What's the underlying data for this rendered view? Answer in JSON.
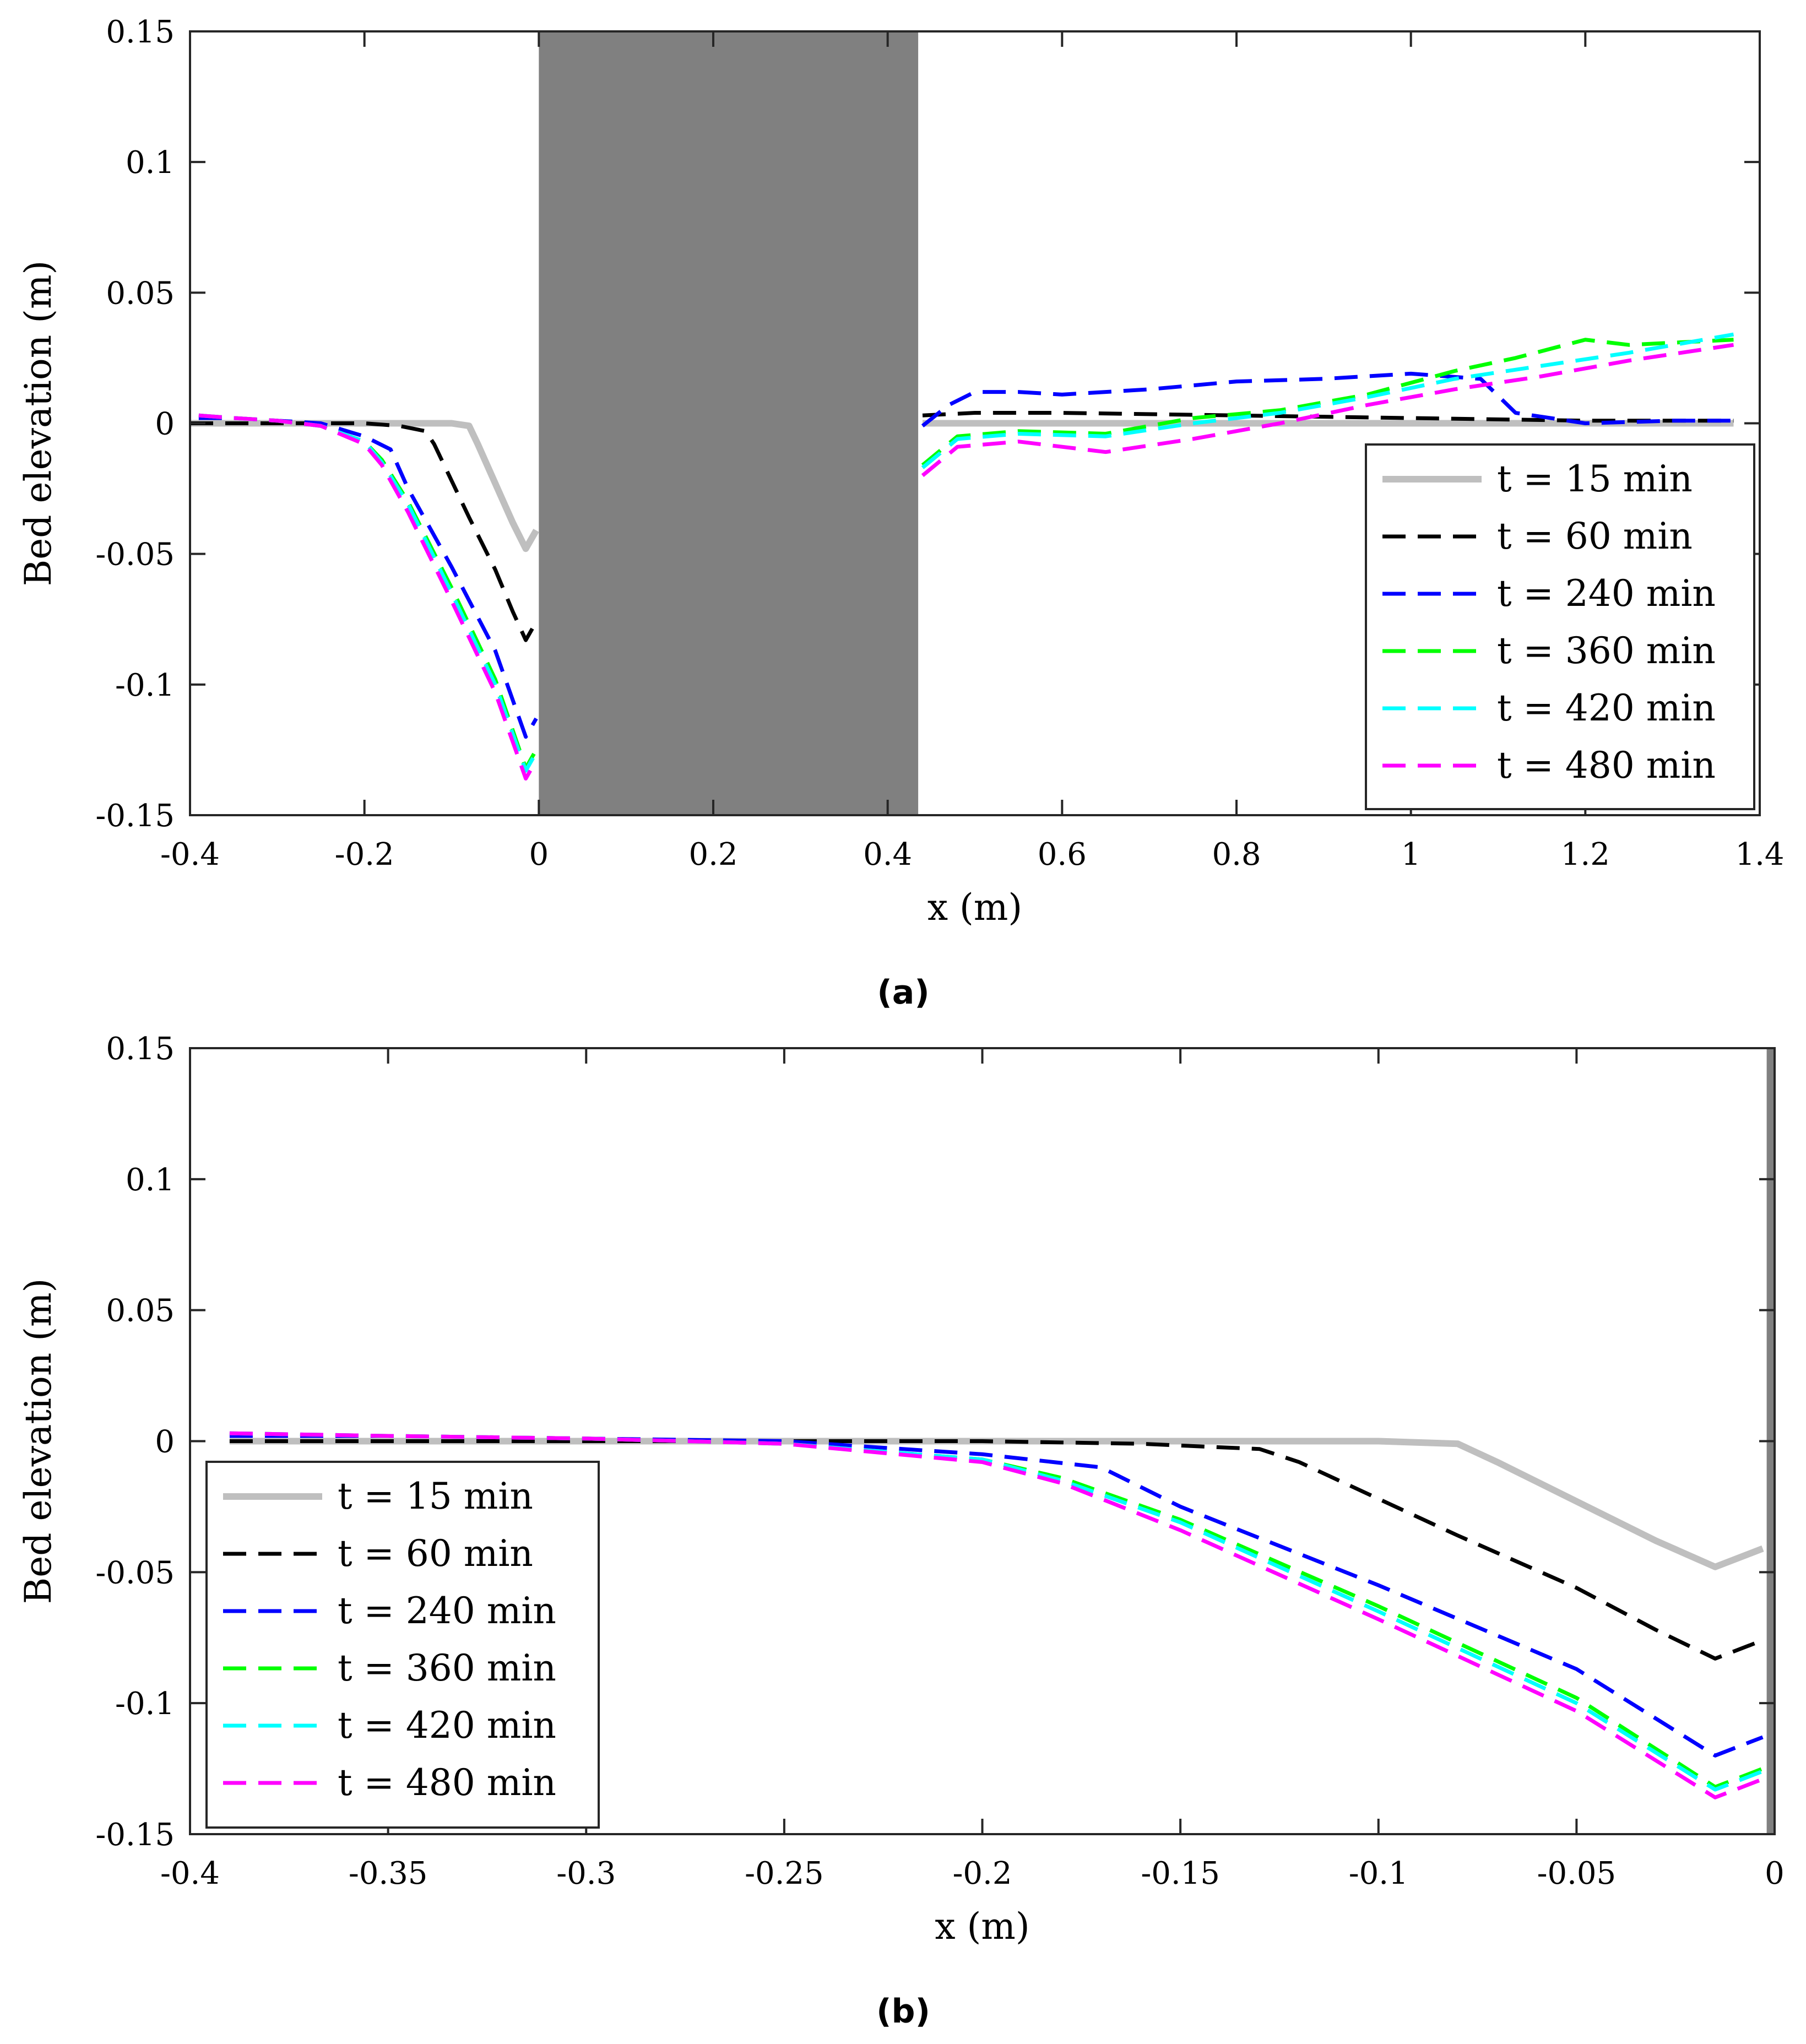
{
  "chart_data": [
    {
      "type": "line",
      "caption": "(a)",
      "xlabel": "x (m)",
      "ylabel": "Bed elevation (m)",
      "xlim": [
        -0.4,
        1.4
      ],
      "ylim": [
        -0.15,
        0.15
      ],
      "xticks": [
        "-0.4",
        "-0.2",
        "0",
        "0.2",
        "0.4",
        "0.6",
        "0.8",
        "1",
        "1.2",
        "1.4"
      ],
      "yticks": [
        "-0.15",
        "-0.1",
        "-0.05",
        "0",
        "0.05",
        "0.1",
        "0.15"
      ],
      "grid": false,
      "legend_position": "bottom-right",
      "obstacle": {
        "x_start": 0,
        "x_end": 0.435,
        "color": "#808080"
      },
      "series": [
        {
          "name": "t = 15 min",
          "color": "#bfbfbf",
          "style": "solid",
          "x": [
            -0.4,
            -0.3,
            -0.2,
            -0.15,
            -0.1,
            -0.08,
            -0.07,
            -0.05,
            -0.03,
            -0.015,
            -0.003
          ],
          "y": [
            0,
            0,
            0,
            0,
            0,
            -0.001,
            -0.008,
            -0.023,
            -0.038,
            -0.048,
            -0.041
          ],
          "x2": [
            0.44,
            0.6,
            0.8,
            1.0,
            1.2,
            1.37
          ],
          "y2": [
            0,
            0,
            0,
            0,
            0,
            0
          ]
        },
        {
          "name": "t = 60 min",
          "color": "#000000",
          "style": "dashed",
          "x": [
            -0.4,
            -0.3,
            -0.2,
            -0.16,
            -0.13,
            -0.12,
            -0.1,
            -0.08,
            -0.05,
            -0.03,
            -0.015,
            -0.003
          ],
          "y": [
            0,
            0,
            0,
            -0.001,
            -0.003,
            -0.008,
            -0.022,
            -0.036,
            -0.056,
            -0.072,
            -0.083,
            -0.076
          ],
          "x2": [
            0.44,
            0.5,
            0.6,
            0.8,
            1.0,
            1.2,
            1.37
          ],
          "y2": [
            0.003,
            0.004,
            0.004,
            0.003,
            0.002,
            0.001,
            0.001
          ]
        },
        {
          "name": "t = 240 min",
          "color": "#0000ff",
          "style": "dashed",
          "x": [
            -0.39,
            -0.35,
            -0.3,
            -0.25,
            -0.2,
            -0.17,
            -0.15,
            -0.1,
            -0.05,
            -0.015,
            -0.003
          ],
          "y": [
            0.002,
            0.002,
            0.001,
            0,
            -0.005,
            -0.01,
            -0.025,
            -0.055,
            -0.087,
            -0.12,
            -0.113
          ],
          "x2": [
            0.44,
            0.47,
            0.5,
            0.55,
            0.6,
            0.7,
            0.8,
            0.9,
            1.0,
            1.08,
            1.12,
            1.2,
            1.3,
            1.37
          ],
          "y2": [
            -0.001,
            0.007,
            0.012,
            0.012,
            0.011,
            0.013,
            0.016,
            0.017,
            0.019,
            0.017,
            0.004,
            0,
            0.001,
            0.001
          ]
        },
        {
          "name": "t = 360 min",
          "color": "#00ff00",
          "style": "dashed",
          "x": [
            -0.39,
            -0.35,
            -0.3,
            -0.25,
            -0.2,
            -0.18,
            -0.15,
            -0.1,
            -0.05,
            -0.015,
            -0.003
          ],
          "y": [
            0.003,
            0.002,
            0.001,
            -0.001,
            -0.007,
            -0.014,
            -0.03,
            -0.063,
            -0.098,
            -0.132,
            -0.125
          ],
          "x2": [
            0.44,
            0.48,
            0.55,
            0.65,
            0.75,
            0.85,
            0.95,
            1.05,
            1.12,
            1.2,
            1.25,
            1.37
          ],
          "y2": [
            -0.016,
            -0.005,
            -0.003,
            -0.004,
            0.002,
            0.005,
            0.011,
            0.02,
            0.025,
            0.032,
            0.03,
            0.032
          ]
        },
        {
          "name": "t = 420 min",
          "color": "#00ffff",
          "style": "dashed",
          "x": [
            -0.39,
            -0.35,
            -0.3,
            -0.25,
            -0.2,
            -0.18,
            -0.15,
            -0.1,
            -0.05,
            -0.015,
            -0.003
          ],
          "y": [
            0.003,
            0.002,
            0.001,
            -0.001,
            -0.007,
            -0.015,
            -0.031,
            -0.065,
            -0.1,
            -0.133,
            -0.126
          ],
          "x2": [
            0.44,
            0.48,
            0.55,
            0.65,
            0.75,
            0.85,
            0.95,
            1.05,
            1.15,
            1.25,
            1.37
          ],
          "y2": [
            -0.017,
            -0.006,
            -0.004,
            -0.005,
            0,
            0.004,
            0.01,
            0.017,
            0.022,
            0.027,
            0.034
          ]
        },
        {
          "name": "t = 480 min",
          "color": "#ff00ff",
          "style": "dashed",
          "x": [
            -0.39,
            -0.35,
            -0.3,
            -0.25,
            -0.2,
            -0.18,
            -0.15,
            -0.1,
            -0.05,
            -0.015,
            -0.003
          ],
          "y": [
            0.003,
            0.002,
            0.001,
            -0.001,
            -0.008,
            -0.016,
            -0.034,
            -0.068,
            -0.103,
            -0.136,
            -0.129
          ],
          "x2": [
            0.44,
            0.48,
            0.55,
            0.65,
            0.75,
            0.85,
            0.95,
            1.05,
            1.15,
            1.25,
            1.37
          ],
          "y2": [
            -0.02,
            -0.009,
            -0.007,
            -0.011,
            -0.006,
            0,
            0.007,
            0.013,
            0.018,
            0.024,
            0.03
          ]
        }
      ]
    },
    {
      "type": "line",
      "caption": "(b)",
      "xlabel": "x (m)",
      "ylabel": "Bed elevation (m)",
      "xlim": [
        -0.4,
        0
      ],
      "ylim": [
        -0.15,
        0.15
      ],
      "xticks": [
        "-0.4",
        "-0.35",
        "-0.3",
        "-0.25",
        "-0.2",
        "-0.15",
        "-0.1",
        "-0.05",
        "0"
      ],
      "yticks": [
        "-0.15",
        "-0.1",
        "-0.05",
        "0",
        "0.05",
        "0.1",
        "0.15"
      ],
      "grid": false,
      "legend_position": "bottom-left",
      "obstacle": {
        "x_start": -0.002,
        "x_end": 0,
        "color": "#808080"
      },
      "series": [
        {
          "name": "t = 15 min",
          "color": "#bfbfbf",
          "style": "solid",
          "x": [
            -0.39,
            -0.3,
            -0.2,
            -0.1,
            -0.08,
            -0.07,
            -0.05,
            -0.03,
            -0.015,
            -0.003
          ],
          "y": [
            0,
            0,
            0,
            0,
            -0.001,
            -0.008,
            -0.023,
            -0.038,
            -0.048,
            -0.041
          ]
        },
        {
          "name": "t = 60 min",
          "color": "#000000",
          "style": "dashed",
          "x": [
            -0.39,
            -0.3,
            -0.2,
            -0.16,
            -0.13,
            -0.12,
            -0.1,
            -0.08,
            -0.05,
            -0.03,
            -0.015,
            -0.003
          ],
          "y": [
            0,
            0,
            0,
            -0.001,
            -0.003,
            -0.008,
            -0.022,
            -0.036,
            -0.056,
            -0.072,
            -0.083,
            -0.076
          ]
        },
        {
          "name": "t = 240 min",
          "color": "#0000ff",
          "style": "dashed",
          "x": [
            -0.39,
            -0.35,
            -0.3,
            -0.25,
            -0.2,
            -0.17,
            -0.15,
            -0.1,
            -0.05,
            -0.015,
            -0.003
          ],
          "y": [
            0.002,
            0.002,
            0.001,
            0,
            -0.005,
            -0.01,
            -0.025,
            -0.055,
            -0.087,
            -0.12,
            -0.113
          ]
        },
        {
          "name": "t = 360 min",
          "color": "#00ff00",
          "style": "dashed",
          "x": [
            -0.39,
            -0.35,
            -0.3,
            -0.25,
            -0.2,
            -0.18,
            -0.15,
            -0.1,
            -0.05,
            -0.015,
            -0.003
          ],
          "y": [
            0.003,
            0.002,
            0.001,
            -0.001,
            -0.007,
            -0.014,
            -0.03,
            -0.063,
            -0.098,
            -0.132,
            -0.125
          ]
        },
        {
          "name": "t = 420 min",
          "color": "#00ffff",
          "style": "dashed",
          "x": [
            -0.39,
            -0.35,
            -0.3,
            -0.25,
            -0.2,
            -0.18,
            -0.15,
            -0.1,
            -0.05,
            -0.015,
            -0.003
          ],
          "y": [
            0.003,
            0.002,
            0.001,
            -0.001,
            -0.007,
            -0.015,
            -0.031,
            -0.065,
            -0.1,
            -0.133,
            -0.126
          ]
        },
        {
          "name": "t = 480 min",
          "color": "#ff00ff",
          "style": "dashed",
          "x": [
            -0.39,
            -0.35,
            -0.3,
            -0.25,
            -0.2,
            -0.18,
            -0.15,
            -0.1,
            -0.05,
            -0.015,
            -0.003
          ],
          "y": [
            0.003,
            0.002,
            0.001,
            -0.001,
            -0.008,
            -0.016,
            -0.034,
            -0.068,
            -0.103,
            -0.136,
            -0.129
          ]
        }
      ]
    }
  ]
}
